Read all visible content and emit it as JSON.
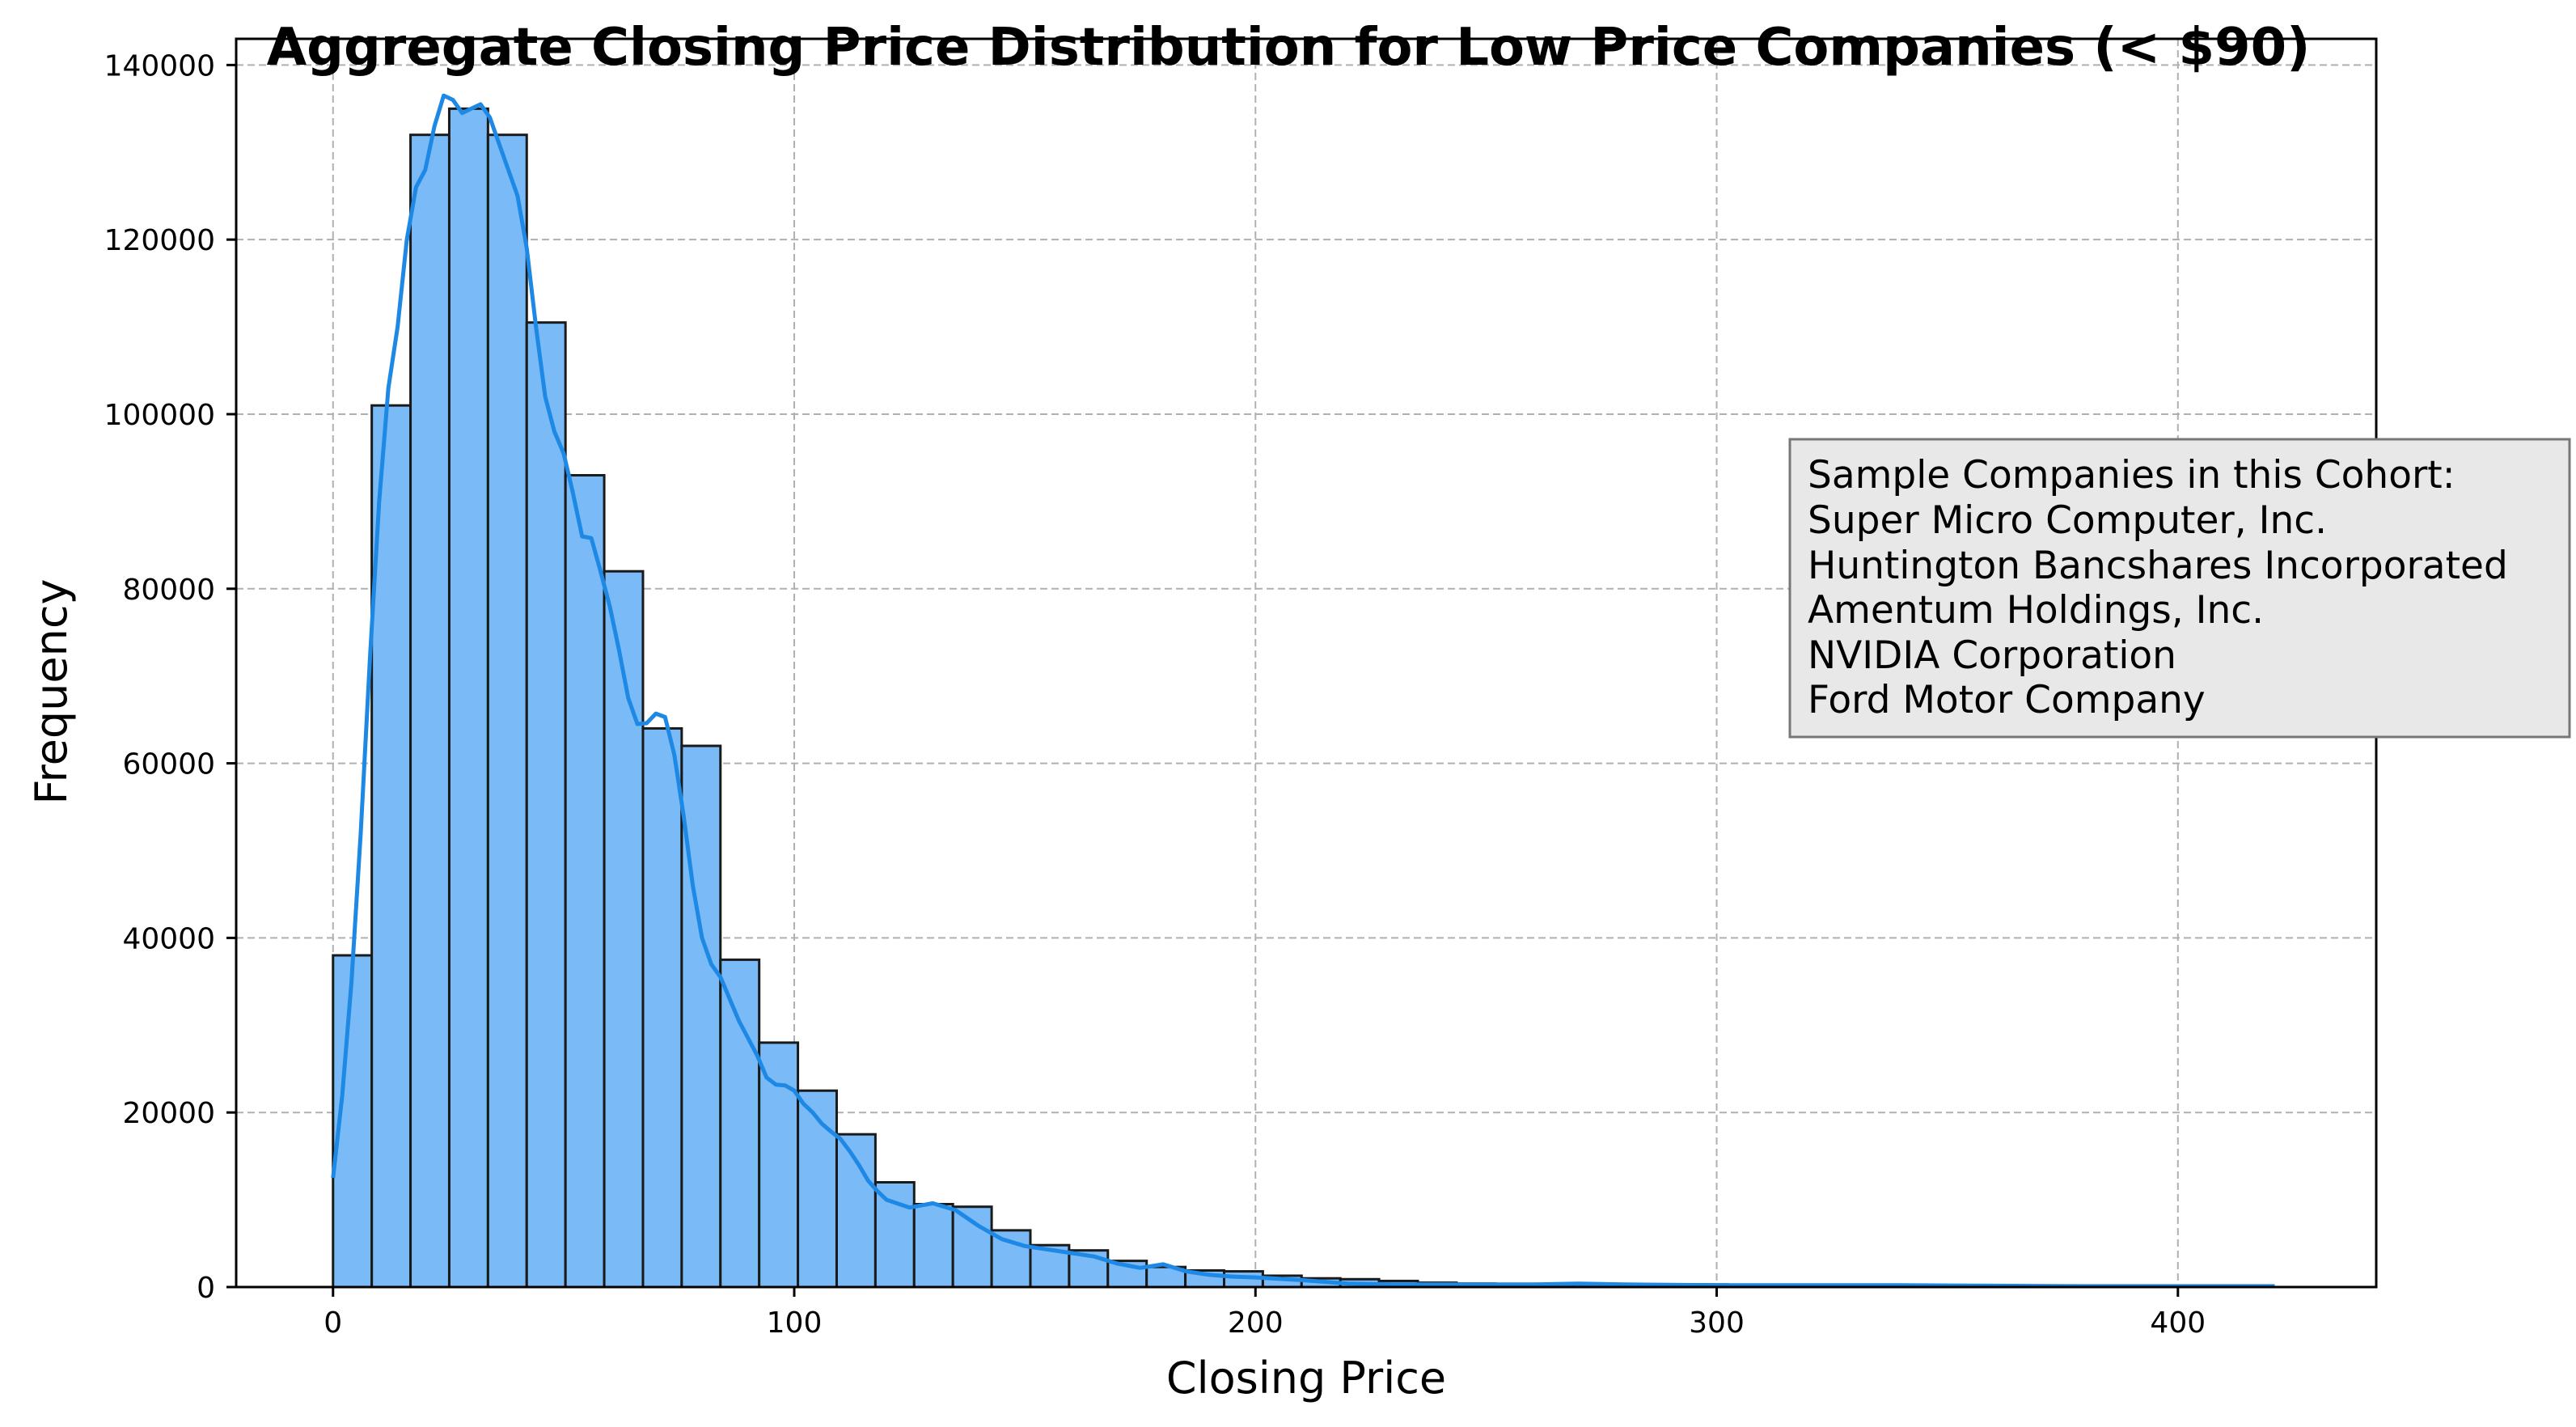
{
  "chart_data": {
    "type": "bar",
    "title": "Aggregate Closing Price Distribution for Low Price Companies (< $90)",
    "xlabel": "Closing Price",
    "ylabel": "Frequency",
    "xlim": [
      -21,
      443
    ],
    "ylim": [
      0,
      143000
    ],
    "grid": true,
    "xticks": [
      0,
      100,
      200,
      300,
      400
    ],
    "yticks": [
      0,
      20000,
      40000,
      60000,
      80000,
      100000,
      120000,
      140000
    ],
    "bin_width": 8.4,
    "bin_start": 0,
    "values": [
      38000,
      101000,
      132000,
      135000,
      132000,
      110500,
      93000,
      82000,
      64000,
      62000,
      37500,
      28000,
      22500,
      17500,
      12000,
      9500,
      9200,
      6500,
      4800,
      4200,
      3000,
      2300,
      1900,
      1800,
      1300,
      1000,
      900,
      700,
      500,
      400,
      350,
      300,
      300,
      300,
      300,
      300,
      200,
      200,
      200,
      200,
      200,
      200,
      100,
      100,
      100,
      100,
      100,
      100,
      100,
      100
    ],
    "kde": {
      "x": [
        0,
        2,
        4,
        6,
        8,
        10,
        12,
        14,
        16,
        18,
        20,
        22,
        24,
        26,
        28,
        30,
        32,
        34,
        36,
        38,
        40,
        42,
        44,
        46,
        48,
        50,
        52,
        54,
        56,
        58,
        60,
        62,
        64,
        66,
        68,
        70,
        72,
        74,
        76,
        78,
        80,
        82,
        84,
        86,
        88,
        90,
        92,
        94,
        96,
        98,
        100,
        102,
        104,
        106,
        108,
        110,
        112,
        114,
        116,
        118,
        120,
        125,
        130,
        135,
        140,
        145,
        150,
        155,
        160,
        165,
        170,
        175,
        180,
        185,
        190,
        195,
        200,
        210,
        220,
        230,
        240,
        260,
        270,
        280,
        300,
        320,
        340,
        360,
        380,
        400,
        421
      ],
      "y": [
        12500,
        22000,
        35000,
        52000,
        72000,
        90000,
        103000,
        110000,
        120000,
        126000,
        128000,
        133000,
        136500,
        136000,
        134500,
        135000,
        135500,
        134000,
        131000,
        128000,
        125000,
        119000,
        110000,
        102000,
        98000,
        95500,
        91000,
        86000,
        85800,
        82000,
        78000,
        73000,
        67500,
        64500,
        64600,
        65700,
        65300,
        61000,
        54000,
        46000,
        40000,
        37000,
        35500,
        33000,
        30500,
        28500,
        26500,
        24000,
        23200,
        23100,
        22500,
        21000,
        20000,
        18700,
        17800,
        17000,
        15600,
        14000,
        12200,
        11000,
        10000,
        9100,
        9600,
        8800,
        7000,
        5500,
        4700,
        4300,
        3900,
        3500,
        2700,
        2200,
        2600,
        1800,
        1400,
        1200,
        1100,
        800,
        400,
        300,
        300,
        300,
        400,
        300,
        200,
        200,
        200,
        150,
        100,
        100,
        100
      ]
    },
    "bar_color": "#7abbf7",
    "edge_color": "#1a1a1a",
    "kde_color": "#1e88e5",
    "annotation": {
      "lines": [
        "Sample Companies in this Cohort:",
        "Super Micro Computer, Inc.",
        "Huntington Bancshares Incorporated",
        "Amentum Holdings, Inc.",
        "NVIDIA Corporation",
        "Ford Motor Company"
      ],
      "box_color": "#e8e8e8",
      "border_color": "#777777"
    }
  }
}
